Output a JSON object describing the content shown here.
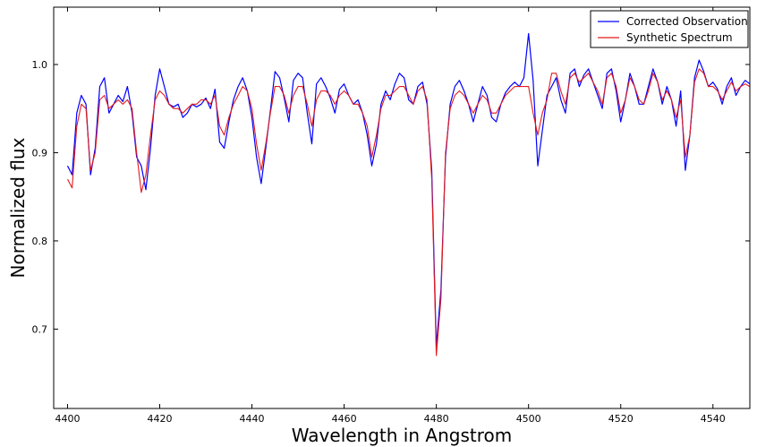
{
  "chart_data": {
    "type": "line",
    "title": "",
    "xlabel": "Wavelength in Angstrom",
    "ylabel": "Normalized flux",
    "xlim": [
      4397,
      4548
    ],
    "ylim": [
      0.61,
      1.065
    ],
    "xticks": [
      4400,
      4420,
      4440,
      4460,
      4480,
      4500,
      4520,
      4540
    ],
    "xtick_labels": [
      "4400",
      "4420",
      "4440",
      "4460",
      "4480",
      "4500",
      "4520",
      "4540"
    ],
    "yticks": [
      0.7,
      0.8,
      0.9,
      1.0
    ],
    "ytick_labels": [
      "0.7",
      "0.8",
      "0.9",
      "1.0"
    ],
    "grid": false,
    "legend_position": "top-right",
    "series": [
      {
        "name": "Corrected Observation",
        "color": "#0000ff",
        "x": [
          4400,
          4401,
          4402,
          4403,
          4404,
          4405,
          4406,
          4407,
          4408,
          4409,
          4410,
          4411,
          4412,
          4413,
          4414,
          4415,
          4416,
          4417,
          4418,
          4419,
          4420,
          4421,
          4422,
          4423,
          4424,
          4425,
          4426,
          4427,
          4428,
          4429,
          4430,
          4431,
          4432,
          4433,
          4434,
          4435,
          4436,
          4437,
          4438,
          4439,
          4440,
          4441,
          4442,
          4443,
          4444,
          4445,
          4446,
          4447,
          4448,
          4449,
          4450,
          4451,
          4452,
          4453,
          4454,
          4455,
          4456,
          4457,
          4458,
          4459,
          4460,
          4461,
          4462,
          4463,
          4464,
          4465,
          4466,
          4467,
          4468,
          4469,
          4470,
          4471,
          4472,
          4473,
          4474,
          4475,
          4476,
          4477,
          4478,
          4479,
          4480,
          4481,
          4482,
          4483,
          4484,
          4485,
          4486,
          4487,
          4488,
          4489,
          4490,
          4491,
          4492,
          4493,
          4494,
          4495,
          4496,
          4497,
          4498,
          4499,
          4500,
          4501,
          4502,
          4503,
          4504,
          4505,
          4506,
          4507,
          4508,
          4509,
          4510,
          4511,
          4512,
          4513,
          4514,
          4515,
          4516,
          4517,
          4518,
          4519,
          4520,
          4521,
          4522,
          4523,
          4524,
          4525,
          4526,
          4527,
          4528,
          4529,
          4530,
          4531,
          4532,
          4533,
          4534,
          4535,
          4536,
          4537,
          4538,
          4539,
          4540,
          4541,
          4542,
          4543,
          4544,
          4545,
          4546,
          4547,
          4548
        ],
        "y": [
          0.885,
          0.875,
          0.945,
          0.965,
          0.955,
          0.875,
          0.905,
          0.975,
          0.985,
          0.945,
          0.955,
          0.965,
          0.958,
          0.975,
          0.945,
          0.895,
          0.885,
          0.858,
          0.905,
          0.965,
          0.995,
          0.975,
          0.955,
          0.952,
          0.955,
          0.94,
          0.945,
          0.955,
          0.952,
          0.955,
          0.962,
          0.95,
          0.972,
          0.912,
          0.905,
          0.935,
          0.96,
          0.975,
          0.985,
          0.97,
          0.94,
          0.895,
          0.865,
          0.905,
          0.948,
          0.992,
          0.985,
          0.962,
          0.935,
          0.982,
          0.99,
          0.985,
          0.945,
          0.91,
          0.978,
          0.985,
          0.975,
          0.962,
          0.945,
          0.972,
          0.978,
          0.965,
          0.955,
          0.96,
          0.945,
          0.92,
          0.885,
          0.91,
          0.955,
          0.97,
          0.96,
          0.978,
          0.99,
          0.985,
          0.96,
          0.955,
          0.975,
          0.98,
          0.955,
          0.88,
          0.68,
          0.745,
          0.895,
          0.955,
          0.975,
          0.982,
          0.97,
          0.955,
          0.935,
          0.955,
          0.975,
          0.965,
          0.94,
          0.935,
          0.955,
          0.968,
          0.975,
          0.98,
          0.975,
          0.985,
          1.035,
          0.982,
          0.885,
          0.925,
          0.965,
          0.975,
          0.985,
          0.96,
          0.945,
          0.99,
          0.995,
          0.975,
          0.988,
          0.995,
          0.98,
          0.965,
          0.95,
          0.99,
          0.995,
          0.97,
          0.935,
          0.96,
          0.99,
          0.975,
          0.955,
          0.955,
          0.975,
          0.995,
          0.98,
          0.955,
          0.975,
          0.96,
          0.93,
          0.97,
          0.88,
          0.92,
          0.985,
          1.005,
          0.992,
          0.975,
          0.98,
          0.972,
          0.955,
          0.975,
          0.985,
          0.965,
          0.975,
          0.982,
          0.978
        ]
      },
      {
        "name": "Synthetic Spectrum",
        "color": "#e41a1c",
        "x": [
          4400,
          4401,
          4402,
          4403,
          4404,
          4405,
          4406,
          4407,
          4408,
          4409,
          4410,
          4411,
          4412,
          4413,
          4414,
          4415,
          4416,
          4417,
          4418,
          4419,
          4420,
          4421,
          4422,
          4423,
          4424,
          4425,
          4426,
          4427,
          4428,
          4429,
          4430,
          4431,
          4432,
          4433,
          4434,
          4435,
          4436,
          4437,
          4438,
          4439,
          4440,
          4441,
          4442,
          4443,
          4444,
          4445,
          4446,
          4447,
          4448,
          4449,
          4450,
          4451,
          4452,
          4453,
          4454,
          4455,
          4456,
          4457,
          4458,
          4459,
          4460,
          4461,
          4462,
          4463,
          4464,
          4465,
          4466,
          4467,
          4468,
          4469,
          4470,
          4471,
          4472,
          4473,
          4474,
          4475,
          4476,
          4477,
          4478,
          4479,
          4480,
          4481,
          4482,
          4483,
          4484,
          4485,
          4486,
          4487,
          4488,
          4489,
          4490,
          4491,
          4492,
          4493,
          4494,
          4495,
          4496,
          4497,
          4498,
          4499,
          4500,
          4501,
          4502,
          4503,
          4504,
          4505,
          4506,
          4507,
          4508,
          4509,
          4510,
          4511,
          4512,
          4513,
          4514,
          4515,
          4516,
          4517,
          4518,
          4519,
          4520,
          4521,
          4522,
          4523,
          4524,
          4525,
          4526,
          4527,
          4528,
          4529,
          4530,
          4531,
          4532,
          4533,
          4534,
          4535,
          4536,
          4537,
          4538,
          4539,
          4540,
          4541,
          4542,
          4543,
          4544,
          4545,
          4546,
          4547,
          4548
        ],
        "y": [
          0.87,
          0.86,
          0.93,
          0.955,
          0.95,
          0.88,
          0.9,
          0.96,
          0.965,
          0.95,
          0.955,
          0.96,
          0.955,
          0.96,
          0.95,
          0.9,
          0.855,
          0.875,
          0.92,
          0.96,
          0.97,
          0.965,
          0.955,
          0.95,
          0.95,
          0.945,
          0.95,
          0.955,
          0.955,
          0.96,
          0.96,
          0.955,
          0.965,
          0.93,
          0.92,
          0.94,
          0.955,
          0.965,
          0.975,
          0.97,
          0.95,
          0.91,
          0.88,
          0.91,
          0.945,
          0.975,
          0.975,
          0.965,
          0.945,
          0.965,
          0.975,
          0.975,
          0.955,
          0.93,
          0.96,
          0.97,
          0.97,
          0.965,
          0.955,
          0.965,
          0.97,
          0.965,
          0.955,
          0.955,
          0.945,
          0.93,
          0.895,
          0.92,
          0.95,
          0.965,
          0.965,
          0.97,
          0.975,
          0.975,
          0.965,
          0.955,
          0.97,
          0.975,
          0.96,
          0.87,
          0.67,
          0.735,
          0.9,
          0.95,
          0.965,
          0.97,
          0.965,
          0.955,
          0.945,
          0.955,
          0.965,
          0.96,
          0.945,
          0.945,
          0.955,
          0.965,
          0.97,
          0.975,
          0.975,
          0.975,
          0.975,
          0.945,
          0.92,
          0.945,
          0.96,
          0.99,
          0.99,
          0.97,
          0.955,
          0.985,
          0.99,
          0.98,
          0.985,
          0.99,
          0.98,
          0.97,
          0.955,
          0.985,
          0.99,
          0.975,
          0.945,
          0.96,
          0.985,
          0.975,
          0.96,
          0.955,
          0.97,
          0.99,
          0.98,
          0.96,
          0.97,
          0.96,
          0.94,
          0.96,
          0.895,
          0.92,
          0.98,
          0.995,
          0.99,
          0.975,
          0.975,
          0.97,
          0.96,
          0.97,
          0.98,
          0.97,
          0.975,
          0.978,
          0.975
        ]
      }
    ]
  }
}
